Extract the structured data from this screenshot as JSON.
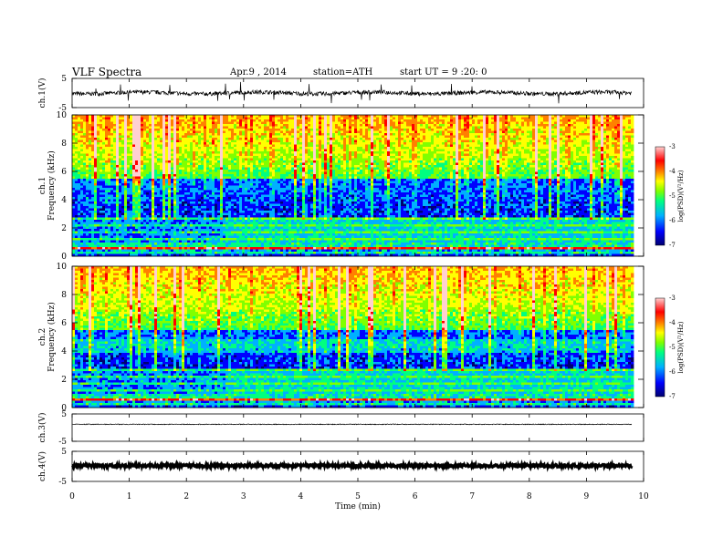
{
  "header": {
    "title": "VLF Spectra",
    "date": "Apr.9 , 2014",
    "station": "station=ATH",
    "start_ut": "start UT = 9 :20: 0"
  },
  "chart_data": {
    "type": "heatmap",
    "x_axis": {
      "label": "Time (min)",
      "range": [
        0,
        10
      ],
      "ticks": [
        0,
        1,
        2,
        3,
        4,
        5,
        6,
        7,
        8,
        9,
        10
      ],
      "data_end_min": 9.8
    },
    "panels": [
      {
        "id": "ch1_wave",
        "type": "line",
        "ylabel": "ch.1(V)",
        "yticks": [
          "5",
          "-5"
        ],
        "ylim": [
          -5,
          5
        ]
      },
      {
        "id": "ch1_spec",
        "type": "heatmap",
        "ylabel_top": "ch.1",
        "ylabel": "Frequency (kHz)",
        "yticks": [
          "0",
          "2",
          "4",
          "6",
          "8",
          "10"
        ],
        "ylim": [
          0,
          10
        ],
        "colorbar": {
          "label": "log(PSD)(V²/Hz)",
          "ticks": [
            "-3",
            "-4",
            "-5",
            "-6",
            "-7"
          ],
          "range": [
            -7,
            -3
          ]
        }
      },
      {
        "id": "ch2_spec",
        "type": "heatmap",
        "ylabel_top": "ch.2",
        "ylabel": "Frequency (kHz)",
        "yticks": [
          "0",
          "2",
          "4",
          "6",
          "8",
          "10"
        ],
        "ylim": [
          0,
          10
        ],
        "colorbar": {
          "label": "log(PSD)(V²/Hz)",
          "ticks": [
            "-3",
            "-4",
            "-5",
            "-6",
            "-7"
          ],
          "range": [
            -7,
            -3
          ]
        }
      },
      {
        "id": "ch3_wave",
        "type": "line",
        "ylabel": "ch.3(V)",
        "yticks": [
          "5",
          "-5"
        ],
        "ylim": [
          -5,
          5
        ]
      },
      {
        "id": "ch4_wave",
        "type": "line",
        "ylabel": "ch.4(V)",
        "yticks": [
          "5",
          "-5"
        ],
        "ylim": [
          -5,
          5
        ]
      }
    ],
    "colormap": [
      "#000070",
      "#0000ff",
      "#00b0ff",
      "#00ff80",
      "#80ff00",
      "#ffff00",
      "#ff8000",
      "#ff0000",
      "#ffd0d0"
    ]
  }
}
